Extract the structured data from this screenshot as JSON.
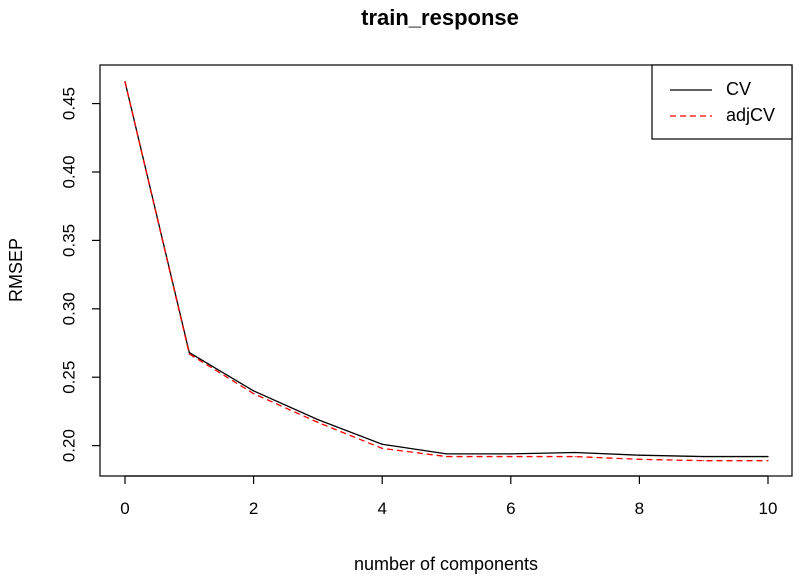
{
  "chart_data": {
    "type": "line",
    "title": "train_response",
    "xlabel": "number of components",
    "ylabel": "RMSEP",
    "xlim": [
      0,
      10
    ],
    "ylim": [
      0.1895,
      0.4665
    ],
    "x_ticks": [
      "0",
      "2",
      "4",
      "6",
      "8",
      "10"
    ],
    "y_ticks": [
      "0.20",
      "0.25",
      "0.30",
      "0.35",
      "0.40",
      "0.45"
    ],
    "x": [
      0,
      1,
      2,
      3,
      4,
      5,
      6,
      7,
      8,
      9,
      10
    ],
    "series": [
      {
        "name": "CV",
        "color": "#000000",
        "dash": "solid",
        "values": [
          0.466,
          0.268,
          0.24,
          0.219,
          0.201,
          0.194,
          0.194,
          0.195,
          0.193,
          0.192,
          0.192
        ]
      },
      {
        "name": "adjCV",
        "color": "#ff0000",
        "dash": "dashed",
        "values": [
          0.466,
          0.267,
          0.238,
          0.217,
          0.198,
          0.192,
          0.192,
          0.192,
          0.19,
          0.189,
          0.189
        ]
      }
    ],
    "legend": {
      "position": "top-right",
      "entries": [
        "CV",
        "adjCV"
      ]
    },
    "grid": false
  }
}
